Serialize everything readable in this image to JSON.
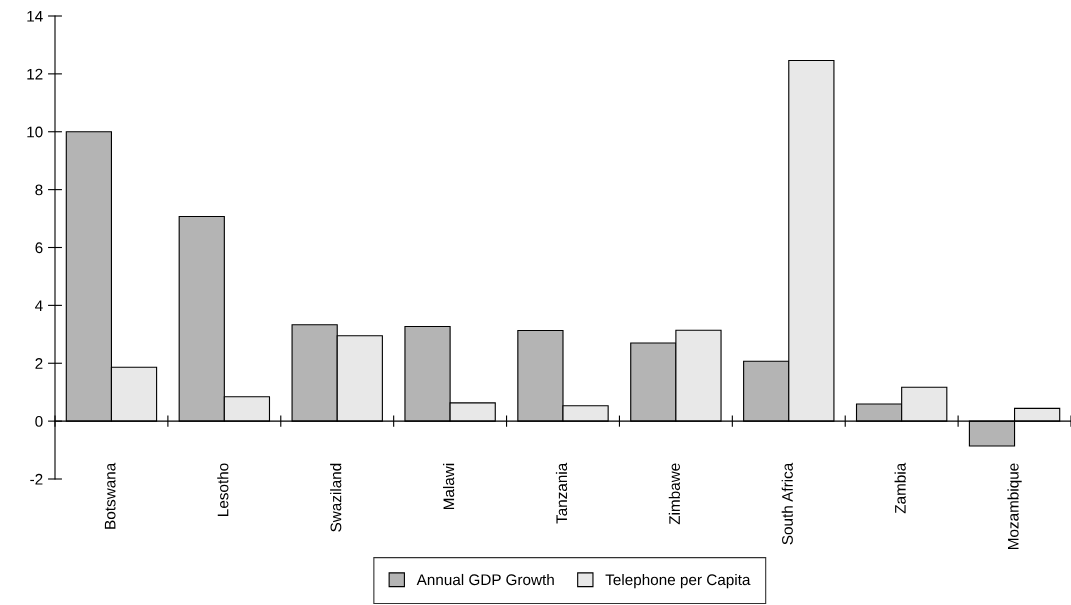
{
  "chart_data": {
    "type": "bar",
    "categories": [
      "Botswana",
      "Lesotho",
      "Swaziland",
      "Malawi",
      "Tanzania",
      "Zimbawe",
      "South Africa",
      "Zambia",
      "Mozambique"
    ],
    "series": [
      {
        "name": "Annual GDP Growth",
        "color": "#b4b4b4",
        "values": [
          10.0,
          7.07,
          3.33,
          3.27,
          3.13,
          2.7,
          2.07,
          0.59,
          -0.86
        ]
      },
      {
        "name": "Telephone per Capita",
        "color": "#e8e8e8",
        "values": [
          1.86,
          0.84,
          2.95,
          0.63,
          0.53,
          3.14,
          12.46,
          1.17,
          0.44
        ]
      }
    ],
    "ylim": [
      -2,
      14
    ],
    "yticks": [
      -2,
      0,
      2,
      4,
      6,
      8,
      10,
      12,
      14
    ],
    "legend": "bottom"
  }
}
